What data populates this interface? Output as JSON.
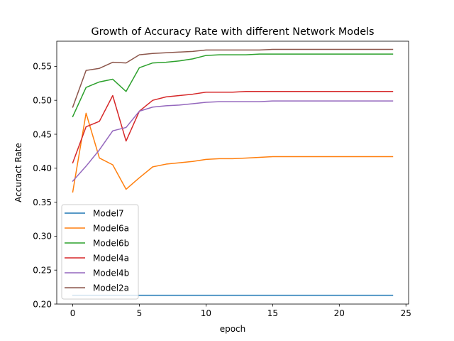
{
  "chart_data": {
    "type": "line",
    "title": "Growth of Accuracy Rate with different Network Models",
    "xlabel": "epoch",
    "ylabel": "Accuract Rate",
    "xlim": [
      -1.2,
      25.2
    ],
    "ylim": [
      0.2,
      0.587
    ],
    "xticks": [
      0,
      5,
      10,
      15,
      20,
      25
    ],
    "xtick_labels": [
      "0",
      "5",
      "10",
      "15",
      "20",
      "25"
    ],
    "yticks": [
      0.2,
      0.25,
      0.3,
      0.35,
      0.4,
      0.45,
      0.5,
      0.55
    ],
    "ytick_labels": [
      "0.20",
      "0.25",
      "0.30",
      "0.35",
      "0.40",
      "0.45",
      "0.50",
      "0.55"
    ],
    "grid": false,
    "legend_position": "lower-left",
    "x": [
      0,
      1,
      2,
      3,
      4,
      5,
      6,
      7,
      8,
      9,
      10,
      11,
      12,
      13,
      14,
      15,
      16,
      17,
      18,
      19,
      20,
      21,
      22,
      23,
      24
    ],
    "series": [
      {
        "name": "Model7",
        "color": "#1f77b4",
        "values": [
          0.213,
          0.213,
          0.213,
          0.213,
          0.213,
          0.213,
          0.213,
          0.213,
          0.213,
          0.213,
          0.213,
          0.213,
          0.213,
          0.213,
          0.213,
          0.213,
          0.213,
          0.213,
          0.213,
          0.213,
          0.213,
          0.213,
          0.213,
          0.213,
          0.213
        ]
      },
      {
        "name": "Model6a",
        "color": "#ff7f0e",
        "values": [
          0.365,
          0.481,
          0.415,
          0.405,
          0.369,
          0.386,
          0.402,
          0.406,
          0.408,
          0.41,
          0.413,
          0.414,
          0.414,
          0.415,
          0.416,
          0.417,
          0.417,
          0.417,
          0.417,
          0.417,
          0.417,
          0.417,
          0.417,
          0.417,
          0.417
        ]
      },
      {
        "name": "Model6b",
        "color": "#2ca02c",
        "values": [
          0.476,
          0.519,
          0.527,
          0.531,
          0.513,
          0.548,
          0.555,
          0.556,
          0.558,
          0.561,
          0.566,
          0.567,
          0.567,
          0.567,
          0.568,
          0.568,
          0.568,
          0.568,
          0.568,
          0.568,
          0.568,
          0.568,
          0.568,
          0.568,
          0.568
        ]
      },
      {
        "name": "Model4a",
        "color": "#d62728",
        "values": [
          0.408,
          0.461,
          0.469,
          0.507,
          0.44,
          0.484,
          0.5,
          0.505,
          0.507,
          0.509,
          0.512,
          0.512,
          0.512,
          0.513,
          0.513,
          0.513,
          0.513,
          0.513,
          0.513,
          0.513,
          0.513,
          0.513,
          0.513,
          0.513,
          0.513
        ]
      },
      {
        "name": "Model4b",
        "color": "#9467bd",
        "values": [
          0.381,
          0.403,
          0.427,
          0.455,
          0.46,
          0.484,
          0.49,
          0.492,
          0.493,
          0.495,
          0.497,
          0.498,
          0.498,
          0.498,
          0.498,
          0.499,
          0.499,
          0.499,
          0.499,
          0.499,
          0.499,
          0.499,
          0.499,
          0.499,
          0.499
        ]
      },
      {
        "name": "Model2a",
        "color": "#8c564b",
        "values": [
          0.49,
          0.544,
          0.547,
          0.556,
          0.555,
          0.567,
          0.569,
          0.57,
          0.571,
          0.572,
          0.574,
          0.574,
          0.574,
          0.574,
          0.574,
          0.575,
          0.575,
          0.575,
          0.575,
          0.575,
          0.575,
          0.575,
          0.575,
          0.575,
          0.575
        ]
      }
    ]
  }
}
